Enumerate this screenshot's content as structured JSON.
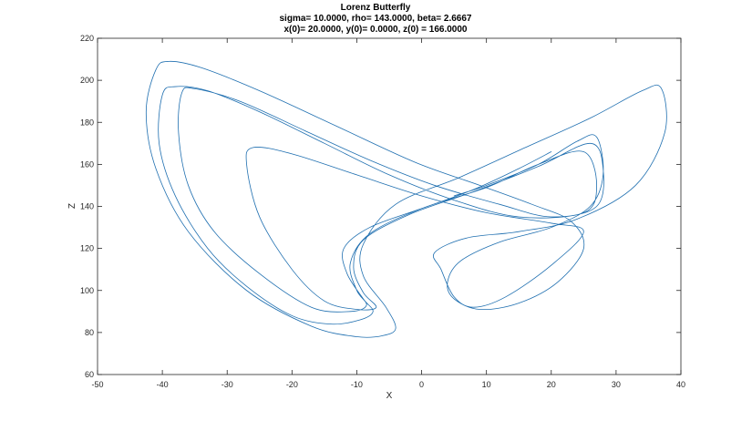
{
  "chart_data": {
    "type": "line",
    "title": "Lorenz Butterfly",
    "subtitle_lines": [
      "sigma= 10.0000, rho= 143.0000, beta= 2.6667",
      "x(0)= 20.0000, y(0)= 0.0000, z(0) = 166.0000"
    ],
    "xlabel": "X",
    "ylabel": "Z",
    "xlim": [
      -50,
      40
    ],
    "ylim": [
      60,
      220
    ],
    "xticks": [
      -50,
      -40,
      -30,
      -20,
      -10,
      0,
      10,
      20,
      30,
      40
    ],
    "yticks": [
      60,
      80,
      100,
      120,
      140,
      160,
      180,
      200,
      220
    ],
    "grid": false,
    "line_color": "#1f6fb0",
    "system": {
      "sigma": 10.0,
      "rho": 143.0,
      "beta": 2.6667,
      "x0": 20.0,
      "y0": 0.0,
      "z0": 166.0
    },
    "series": [
      {
        "values": [
          [
            20.0,
            166.0
          ],
          [
            15.0,
            158.0
          ],
          [
            8.0,
            148.0
          ],
          [
            0.0,
            139.0
          ],
          [
            -8.0,
            130.0
          ],
          [
            -12.0,
            120.0
          ],
          [
            -11.5,
            108.0
          ],
          [
            -9.0,
            96.0
          ],
          [
            -7.5,
            90.0
          ],
          [
            -9.5,
            86.0
          ],
          [
            -14.0,
            84.0
          ],
          [
            -20.0,
            88.0
          ],
          [
            -27.0,
            102.0
          ],
          [
            -33.0,
            120.0
          ],
          [
            -38.0,
            145.0
          ],
          [
            -40.5,
            170.0
          ],
          [
            -40.0,
            193.0
          ],
          [
            -38.0,
            197.0
          ],
          [
            -33.0,
            195.0
          ],
          [
            -25.0,
            185.0
          ],
          [
            -15.0,
            170.0
          ],
          [
            -5.0,
            155.0
          ],
          [
            5.0,
            143.0
          ],
          [
            15.0,
            135.0
          ],
          [
            25.0,
            137.0
          ],
          [
            27.0,
            150.0
          ],
          [
            25.0,
            166.0
          ],
          [
            18.0,
            160.0
          ],
          [
            10.0,
            149.0
          ],
          [
            0.0,
            139.0
          ],
          [
            -8.0,
            127.0
          ],
          [
            -11.0,
            113.0
          ],
          [
            -10.0,
            100.0
          ],
          [
            -8.5,
            93.0
          ],
          [
            -11.0,
            90.0
          ],
          [
            -17.0,
            92.0
          ],
          [
            -25.0,
            108.0
          ],
          [
            -32.0,
            128.0
          ],
          [
            -36.0,
            150.0
          ],
          [
            -37.5,
            175.0
          ],
          [
            -37.0,
            194.0
          ],
          [
            -35.0,
            196.0
          ],
          [
            -28.0,
            190.0
          ],
          [
            -18.0,
            176.0
          ],
          [
            -8.0,
            162.0
          ],
          [
            2.0,
            150.0
          ],
          [
            12.0,
            141.0
          ],
          [
            20.0,
            135.0
          ],
          [
            27.0,
            140.0
          ],
          [
            28.0,
            158.0
          ],
          [
            26.0,
            170.0
          ],
          [
            18.0,
            159.0
          ],
          [
            8.0,
            147.0
          ],
          [
            -2.0,
            136.0
          ],
          [
            -9.0,
            124.0
          ],
          [
            -10.5,
            111.0
          ],
          [
            -9.0,
            99.0
          ],
          [
            -7.0,
            92.0
          ],
          [
            -10.0,
            91.0
          ],
          [
            -15.0,
            95.0
          ],
          [
            -20.0,
            110.0
          ],
          [
            -25.0,
            135.0
          ],
          [
            -27.0,
            160.0
          ],
          [
            -26.0,
            168.0
          ],
          [
            -20.0,
            165.0
          ],
          [
            -10.0,
            155.0
          ],
          [
            0.0,
            145.0
          ],
          [
            10.0,
            137.0
          ],
          [
            20.0,
            132.0
          ],
          [
            25.0,
            128.0
          ],
          [
            20.0,
            112.0
          ],
          [
            13.0,
            97.0
          ],
          [
            8.0,
            92.0
          ],
          [
            5.0,
            97.0
          ],
          [
            3.0,
            110.0
          ],
          [
            2.0,
            118.0
          ],
          [
            7.0,
            125.0
          ],
          [
            15.0,
            128.0
          ],
          [
            24.0,
            134.0
          ],
          [
            33.0,
            150.0
          ],
          [
            37.5,
            175.0
          ],
          [
            37.0,
            196.0
          ],
          [
            34.0,
            195.0
          ],
          [
            26.0,
            182.0
          ],
          [
            16.0,
            168.0
          ],
          [
            6.0,
            154.0
          ],
          [
            -4.0,
            141.0
          ],
          [
            -9.0,
            122.0
          ],
          [
            -9.0,
            107.0
          ],
          [
            -5.5,
            92.0
          ],
          [
            -4.0,
            82.0
          ],
          [
            -6.0,
            78.5
          ],
          [
            -10.0,
            78.0
          ],
          [
            -17.0,
            83.0
          ],
          [
            -27.0,
            100.0
          ],
          [
            -36.0,
            128.0
          ],
          [
            -41.0,
            158.0
          ],
          [
            -42.5,
            185.0
          ],
          [
            -41.0,
            205.0
          ],
          [
            -39.0,
            209.0
          ],
          [
            -34.0,
            206.0
          ],
          [
            -25.0,
            195.0
          ],
          [
            -13.0,
            178.0
          ],
          [
            -1.0,
            161.0
          ],
          [
            9.0,
            150.0
          ],
          [
            17.0,
            141.0
          ],
          [
            23.0,
            133.0
          ],
          [
            25.0,
            120.0
          ],
          [
            21.0,
            104.0
          ],
          [
            15.0,
            94.0
          ],
          [
            9.0,
            91.0
          ],
          [
            5.0,
            96.0
          ],
          [
            4.0,
            104.0
          ],
          [
            6.0,
            114.0
          ],
          [
            12.0,
            123.0
          ],
          [
            20.0,
            130.0
          ],
          [
            26.0,
            140.0
          ],
          [
            28.0,
            155.0
          ],
          [
            27.0,
            173.0
          ],
          [
            24.0,
            171.0
          ],
          [
            18.0,
            160.0
          ],
          [
            10.0,
            150.0
          ],
          [
            5.0,
            145.0
          ]
        ]
      }
    ]
  }
}
